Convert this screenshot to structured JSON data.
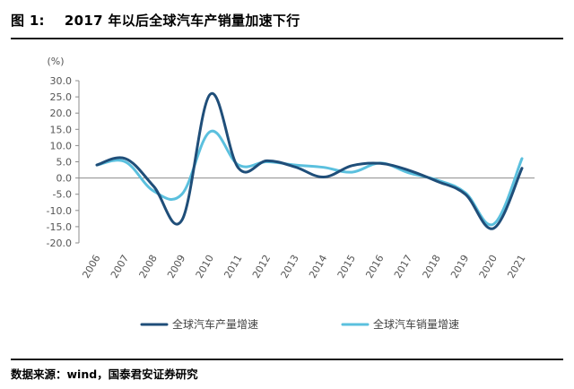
{
  "figure": {
    "label": "图 1:",
    "title": "2017 年以后全球汽车产销量加速下行",
    "source": "数据来源：wind，国泰君安证券研究"
  },
  "chart_data": {
    "type": "line",
    "unit": "(%)",
    "categories": [
      "2006",
      "2007",
      "2008",
      "2009",
      "2010",
      "2011",
      "2012",
      "2013",
      "2014",
      "2015",
      "2016",
      "2017",
      "2018",
      "2019",
      "2020",
      "2021"
    ],
    "y_ticks": [
      "30.0",
      "25.0",
      "20.0",
      "15.0",
      "10.0",
      "5.0",
      "0.0",
      "-5.0",
      "-10.0",
      "-15.0",
      "-20.0"
    ],
    "ylim": [
      -20,
      30
    ],
    "grid": false,
    "legend": "bottom",
    "series": [
      {
        "name": "全球汽车产量增速",
        "color": "#1f4e79",
        "values": [
          4.0,
          6.0,
          -2.5,
          -13.0,
          25.8,
          3.0,
          5.3,
          3.4,
          0.3,
          3.8,
          4.5,
          2.4,
          -1.0,
          -5.0,
          -15.5,
          3.0
        ]
      },
      {
        "name": "全球汽车销量增速",
        "color": "#5bc0de",
        "values": [
          4.0,
          5.0,
          -4.0,
          -5.0,
          14.3,
          4.0,
          5.0,
          4.0,
          3.3,
          1.8,
          4.6,
          1.6,
          -0.6,
          -4.5,
          -14.2,
          6.0
        ]
      }
    ]
  }
}
